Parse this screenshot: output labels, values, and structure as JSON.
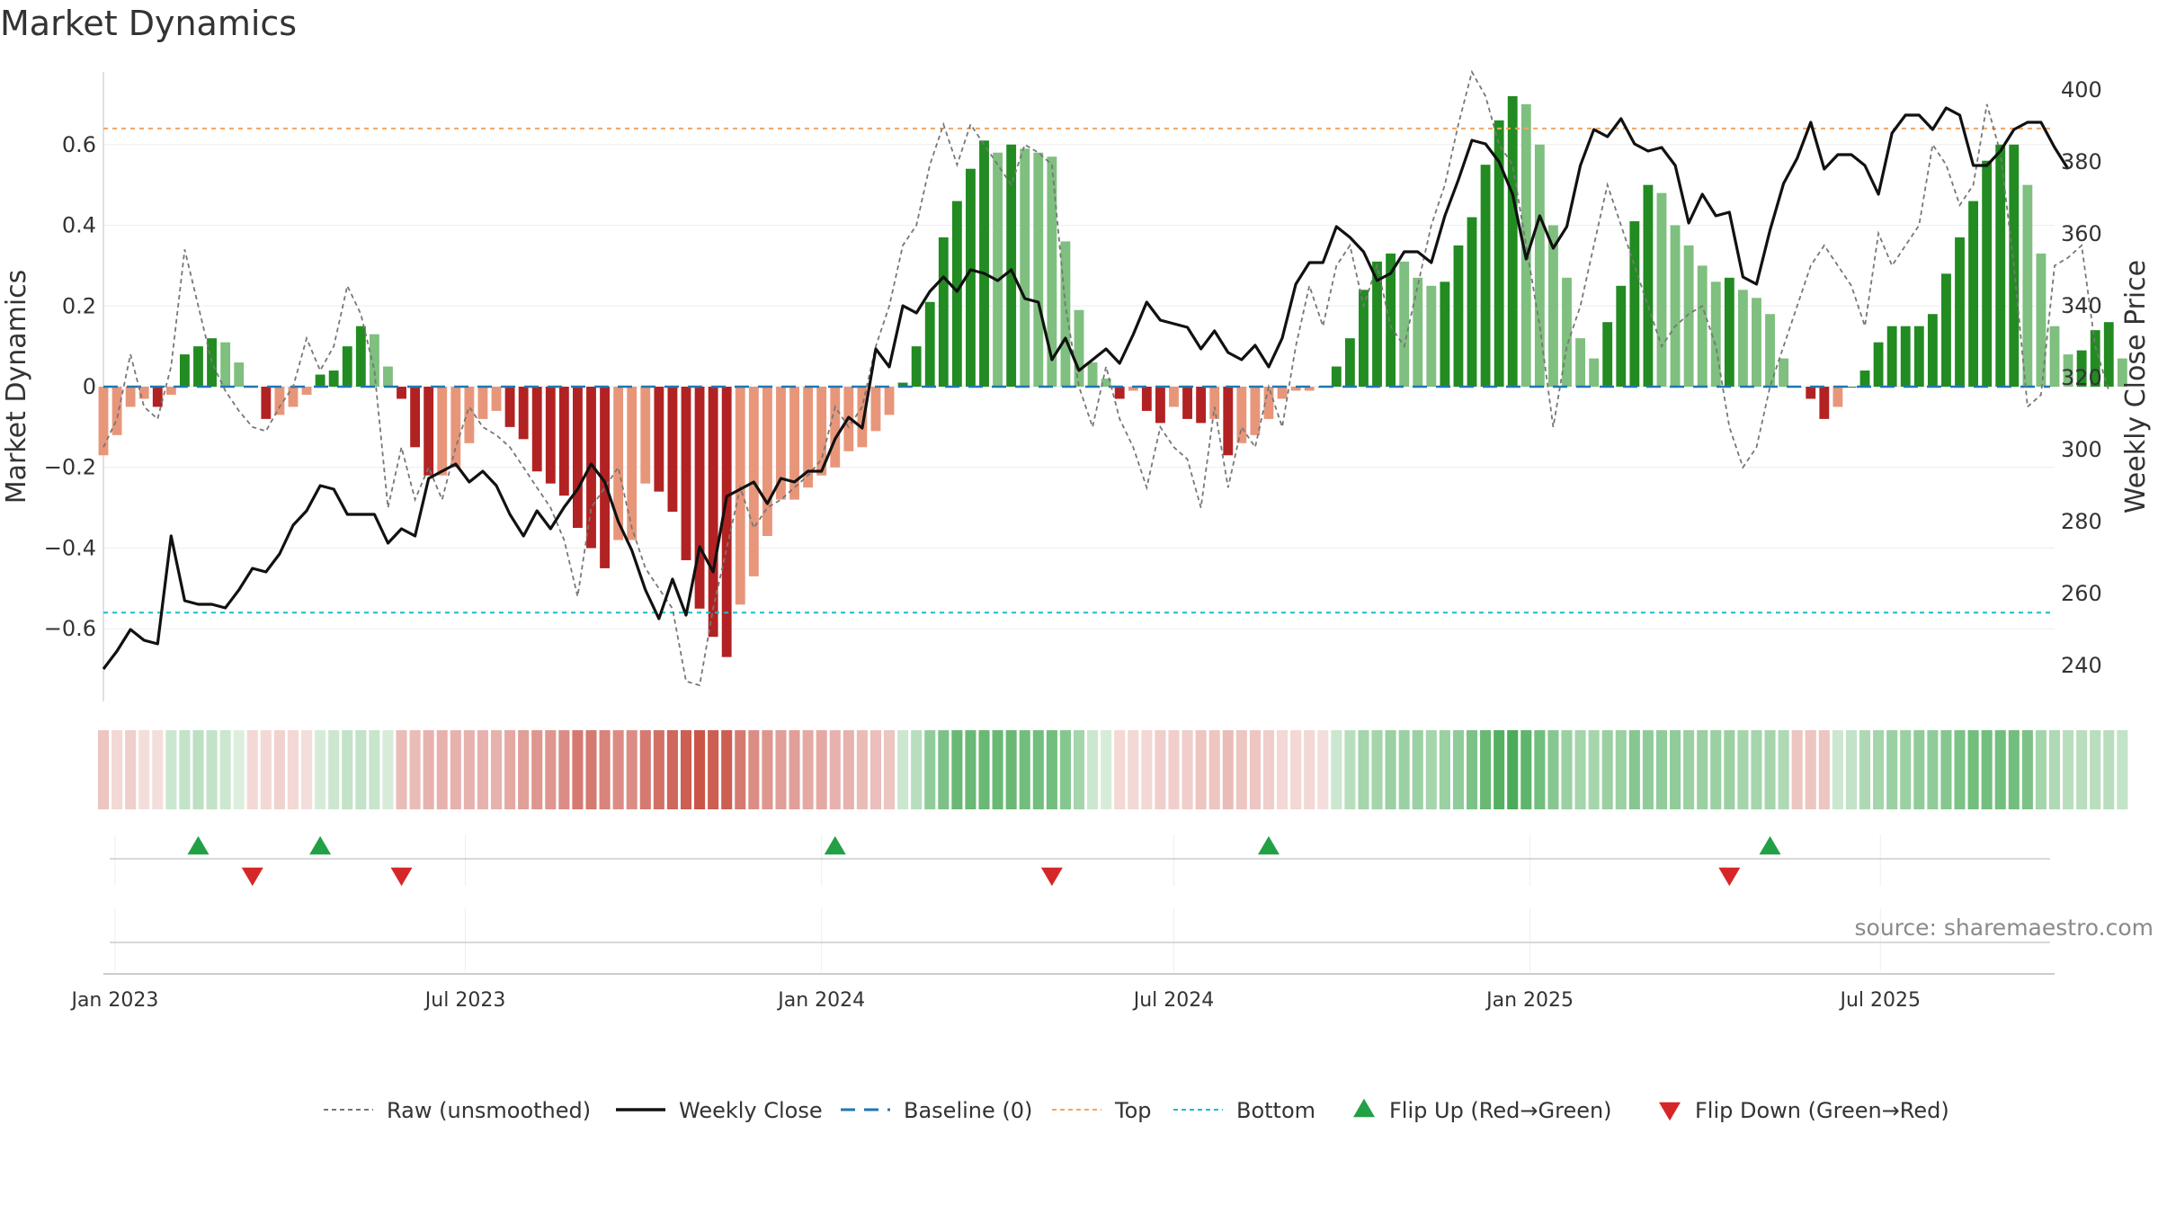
{
  "page_title": "Market Dynamics",
  "source_text": "source: sharemaestro.com",
  "colors": {
    "bar_pos_strong": "#228B22",
    "bar_pos_weak": "#7fbf7f",
    "bar_neg_strong": "#b22222",
    "bar_neg_weak": "#e8967a",
    "price_line": "#111111",
    "raw_line": "#777777",
    "baseline": "#1f77b4",
    "top_line": "#f4a460",
    "bottom_line": "#17becf",
    "flip_up": "#22a045",
    "flip_down": "#d62728"
  },
  "chart_data": {
    "type": "bar",
    "title": "Market Dynamics",
    "ylabel_left": "Market Dynamics",
    "ylabel_right": "Weekly Close Price",
    "ylim_left": [
      -0.78,
      0.78
    ],
    "ylim_right": [
      230,
      405
    ],
    "yticks_left": [
      "0.6",
      "0.4",
      "0.2",
      "0",
      "−0.2",
      "−0.4",
      "−0.6"
    ],
    "yticks_left_values": [
      0.6,
      0.4,
      0.2,
      0,
      -0.2,
      -0.4,
      -0.6
    ],
    "yticks_right": [
      "400",
      "380",
      "360",
      "340",
      "320",
      "300",
      "280",
      "260",
      "240"
    ],
    "yticks_right_values": [
      400,
      380,
      360,
      340,
      320,
      300,
      280,
      260,
      240
    ],
    "x_range": [
      "2022-12-26",
      "2025-09-29"
    ],
    "xticks": [
      {
        "date": "2023-01-01",
        "label": "Jan 2023"
      },
      {
        "date": "2023-07-01",
        "label": "Jul 2023"
      },
      {
        "date": "2024-01-01",
        "label": "Jan 2024"
      },
      {
        "date": "2024-07-01",
        "label": "Jul 2024"
      },
      {
        "date": "2025-01-01",
        "label": "Jan 2025"
      },
      {
        "date": "2025-07-01",
        "label": "Jul 2025"
      }
    ],
    "start_date": "2022-12-26",
    "interval": "weekly",
    "top_level": 0.64,
    "bottom_level": -0.56,
    "baseline": 0,
    "dynamics": [
      -0.17,
      -0.12,
      -0.05,
      -0.03,
      -0.05,
      -0.02,
      0.08,
      0.1,
      0.12,
      0.11,
      0.06,
      0.0,
      -0.08,
      -0.07,
      -0.05,
      -0.02,
      0.03,
      0.04,
      0.1,
      0.15,
      0.13,
      0.05,
      -0.03,
      -0.15,
      -0.22,
      -0.22,
      -0.2,
      -0.14,
      -0.08,
      -0.06,
      -0.1,
      -0.13,
      -0.21,
      -0.24,
      -0.27,
      -0.35,
      -0.4,
      -0.45,
      -0.38,
      -0.38,
      -0.24,
      -0.26,
      -0.31,
      -0.43,
      -0.55,
      -0.62,
      -0.67,
      -0.54,
      -0.47,
      -0.37,
      -0.28,
      -0.28,
      -0.25,
      -0.22,
      -0.2,
      -0.16,
      -0.15,
      -0.11,
      -0.07,
      0.01,
      0.1,
      0.21,
      0.37,
      0.46,
      0.54,
      0.61,
      0.58,
      0.6,
      0.59,
      0.58,
      0.57,
      0.36,
      0.19,
      0.06,
      0.02,
      -0.03,
      -0.01,
      -0.06,
      -0.09,
      -0.05,
      -0.08,
      -0.09,
      -0.08,
      -0.17,
      -0.14,
      -0.12,
      -0.08,
      -0.03,
      -0.01,
      -0.01,
      0.0,
      0.05,
      0.12,
      0.24,
      0.31,
      0.33,
      0.31,
      0.27,
      0.25,
      0.26,
      0.35,
      0.42,
      0.55,
      0.66,
      0.72,
      0.7,
      0.6,
      0.4,
      0.27,
      0.12,
      0.07,
      0.16,
      0.25,
      0.41,
      0.5,
      0.48,
      0.4,
      0.35,
      0.3,
      0.26,
      0.27,
      0.24,
      0.22,
      0.18,
      0.07,
      0.0,
      -0.03,
      -0.08,
      -0.05,
      0.0,
      0.04,
      0.11,
      0.15,
      0.15,
      0.15,
      0.18,
      0.28,
      0.37,
      0.46,
      0.56,
      0.6,
      0.6,
      0.5,
      0.33,
      0.15,
      0.08,
      0.09,
      0.14,
      0.16,
      0.07
    ],
    "raw": [
      -0.15,
      -0.08,
      0.08,
      -0.05,
      -0.08,
      0.05,
      0.34,
      0.2,
      0.06,
      -0.01,
      -0.06,
      -0.1,
      -0.11,
      -0.05,
      0.0,
      0.12,
      0.04,
      0.1,
      0.25,
      0.18,
      0.04,
      -0.3,
      -0.15,
      -0.28,
      -0.2,
      -0.28,
      -0.15,
      -0.05,
      -0.1,
      -0.12,
      -0.15,
      -0.2,
      -0.25,
      -0.3,
      -0.38,
      -0.52,
      -0.3,
      -0.25,
      -0.2,
      -0.35,
      -0.45,
      -0.5,
      -0.55,
      -0.73,
      -0.74,
      -0.55,
      -0.4,
      -0.25,
      -0.35,
      -0.3,
      -0.28,
      -0.25,
      -0.22,
      -0.18,
      -0.05,
      -0.1,
      -0.05,
      0.1,
      0.2,
      0.35,
      0.4,
      0.55,
      0.65,
      0.55,
      0.65,
      0.6,
      0.55,
      0.5,
      0.6,
      0.58,
      0.55,
      0.2,
      0.0,
      -0.1,
      0.05,
      -0.08,
      -0.15,
      -0.25,
      -0.1,
      -0.15,
      -0.18,
      -0.3,
      -0.05,
      -0.25,
      -0.1,
      -0.15,
      0.0,
      -0.1,
      0.1,
      0.25,
      0.15,
      0.3,
      0.35,
      0.2,
      0.3,
      0.15,
      0.1,
      0.25,
      0.4,
      0.5,
      0.65,
      0.78,
      0.72,
      0.6,
      0.55,
      0.35,
      0.15,
      -0.1,
      0.1,
      0.2,
      0.35,
      0.5,
      0.4,
      0.3,
      0.2,
      0.1,
      0.15,
      0.18,
      0.2,
      0.1,
      -0.1,
      -0.2,
      -0.15,
      0.0,
      0.1,
      0.2,
      0.3,
      0.35,
      0.3,
      0.25,
      0.15,
      0.38,
      0.3,
      0.35,
      0.4,
      0.6,
      0.55,
      0.45,
      0.5,
      0.7,
      0.58,
      0.3,
      -0.05,
      -0.02,
      0.3,
      0.32,
      0.35,
      0.1,
      -0.01
    ],
    "weekly_close": [
      239,
      244,
      250,
      247,
      246,
      276,
      258,
      257,
      257,
      256,
      261,
      267,
      266,
      271,
      279,
      283,
      290,
      289,
      282,
      282,
      282,
      274,
      278,
      276,
      292,
      294,
      296,
      291,
      294,
      290,
      282,
      276,
      283,
      278,
      284,
      289,
      296,
      291,
      280,
      272,
      261,
      253,
      264,
      254,
      273,
      266,
      287,
      289,
      291,
      285,
      292,
      291,
      294,
      294,
      303,
      309,
      306,
      328,
      323,
      340,
      338,
      344,
      348,
      344,
      350,
      349,
      347,
      350,
      342,
      341,
      325,
      331,
      322,
      325,
      328,
      324,
      332,
      341,
      336,
      335,
      334,
      328,
      333,
      327,
      325,
      329,
      323,
      331,
      346,
      352,
      352,
      362,
      359,
      355,
      347,
      349,
      355,
      355,
      352,
      365,
      375,
      386,
      385,
      380,
      371,
      353,
      365,
      356,
      362,
      379,
      389,
      387,
      392,
      385,
      383,
      384,
      379,
      363,
      371,
      365,
      366,
      348,
      346,
      361,
      374,
      381,
      391,
      378,
      382,
      382,
      379,
      371,
      388,
      393,
      393,
      389,
      395,
      393,
      379,
      379,
      383,
      389,
      391,
      391,
      384,
      378
    ],
    "heat_levels": [
      -0.15,
      -0.05,
      -0.1,
      -0.02,
      -0.02,
      0.1,
      0.15,
      0.18,
      0.15,
      0.1,
      0.02,
      -0.05,
      -0.05,
      -0.08,
      -0.05,
      -0.02,
      0.05,
      0.1,
      0.15,
      0.15,
      0.12,
      0.05,
      -0.2,
      -0.2,
      -0.25,
      -0.25,
      -0.25,
      -0.25,
      -0.25,
      -0.25,
      -0.3,
      -0.35,
      -0.4,
      -0.4,
      -0.45,
      -0.55,
      -0.55,
      -0.5,
      -0.45,
      -0.45,
      -0.55,
      -0.6,
      -0.65,
      -0.7,
      -0.75,
      -0.7,
      -0.7,
      -0.55,
      -0.45,
      -0.4,
      -0.35,
      -0.35,
      -0.3,
      -0.3,
      -0.25,
      -0.25,
      -0.2,
      -0.18,
      -0.15,
      0.1,
      0.2,
      0.4,
      0.5,
      0.6,
      0.6,
      0.6,
      0.6,
      0.6,
      0.55,
      0.55,
      0.55,
      0.45,
      0.3,
      0.1,
      0.05,
      -0.05,
      -0.05,
      -0.05,
      -0.1,
      -0.1,
      -0.1,
      -0.15,
      -0.15,
      -0.2,
      -0.15,
      -0.15,
      -0.1,
      -0.05,
      -0.05,
      -0.05,
      -0.02,
      0.1,
      0.2,
      0.3,
      0.3,
      0.35,
      0.35,
      0.35,
      0.3,
      0.35,
      0.4,
      0.5,
      0.6,
      0.7,
      0.75,
      0.65,
      0.55,
      0.45,
      0.35,
      0.3,
      0.3,
      0.35,
      0.35,
      0.45,
      0.4,
      0.4,
      0.4,
      0.35,
      0.35,
      0.35,
      0.35,
      0.3,
      0.3,
      0.3,
      0.25,
      -0.15,
      -0.15,
      -0.15,
      0.1,
      0.15,
      0.25,
      0.3,
      0.35,
      0.35,
      0.4,
      0.4,
      0.45,
      0.5,
      0.55,
      0.55,
      0.55,
      0.55,
      0.5,
      0.3,
      0.25,
      0.2,
      0.2,
      0.2,
      0.2,
      0.15
    ],
    "flips_up": [
      "2023-02-13",
      "2023-04-17",
      "2024-01-08",
      "2024-08-19",
      "2025-05-05"
    ],
    "flips_down": [
      "2023-03-13",
      "2023-05-29",
      "2024-04-29",
      "2025-04-14"
    ],
    "legend": [
      {
        "label": "Raw (unsmoothed)",
        "kind": "dashed-gray"
      },
      {
        "label": "Weekly Close",
        "kind": "solid-black"
      },
      {
        "label": "Baseline (0)",
        "kind": "dashed-blue"
      },
      {
        "label": "Top",
        "kind": "dotted-orange"
      },
      {
        "label": "Bottom",
        "kind": "dotted-cyan"
      },
      {
        "label": "Flip Up (Red→Green)",
        "kind": "triangle-up"
      },
      {
        "label": "Flip Down (Green→Red)",
        "kind": "triangle-down"
      }
    ],
    "legend_position": "bottom-center",
    "grid": true
  }
}
